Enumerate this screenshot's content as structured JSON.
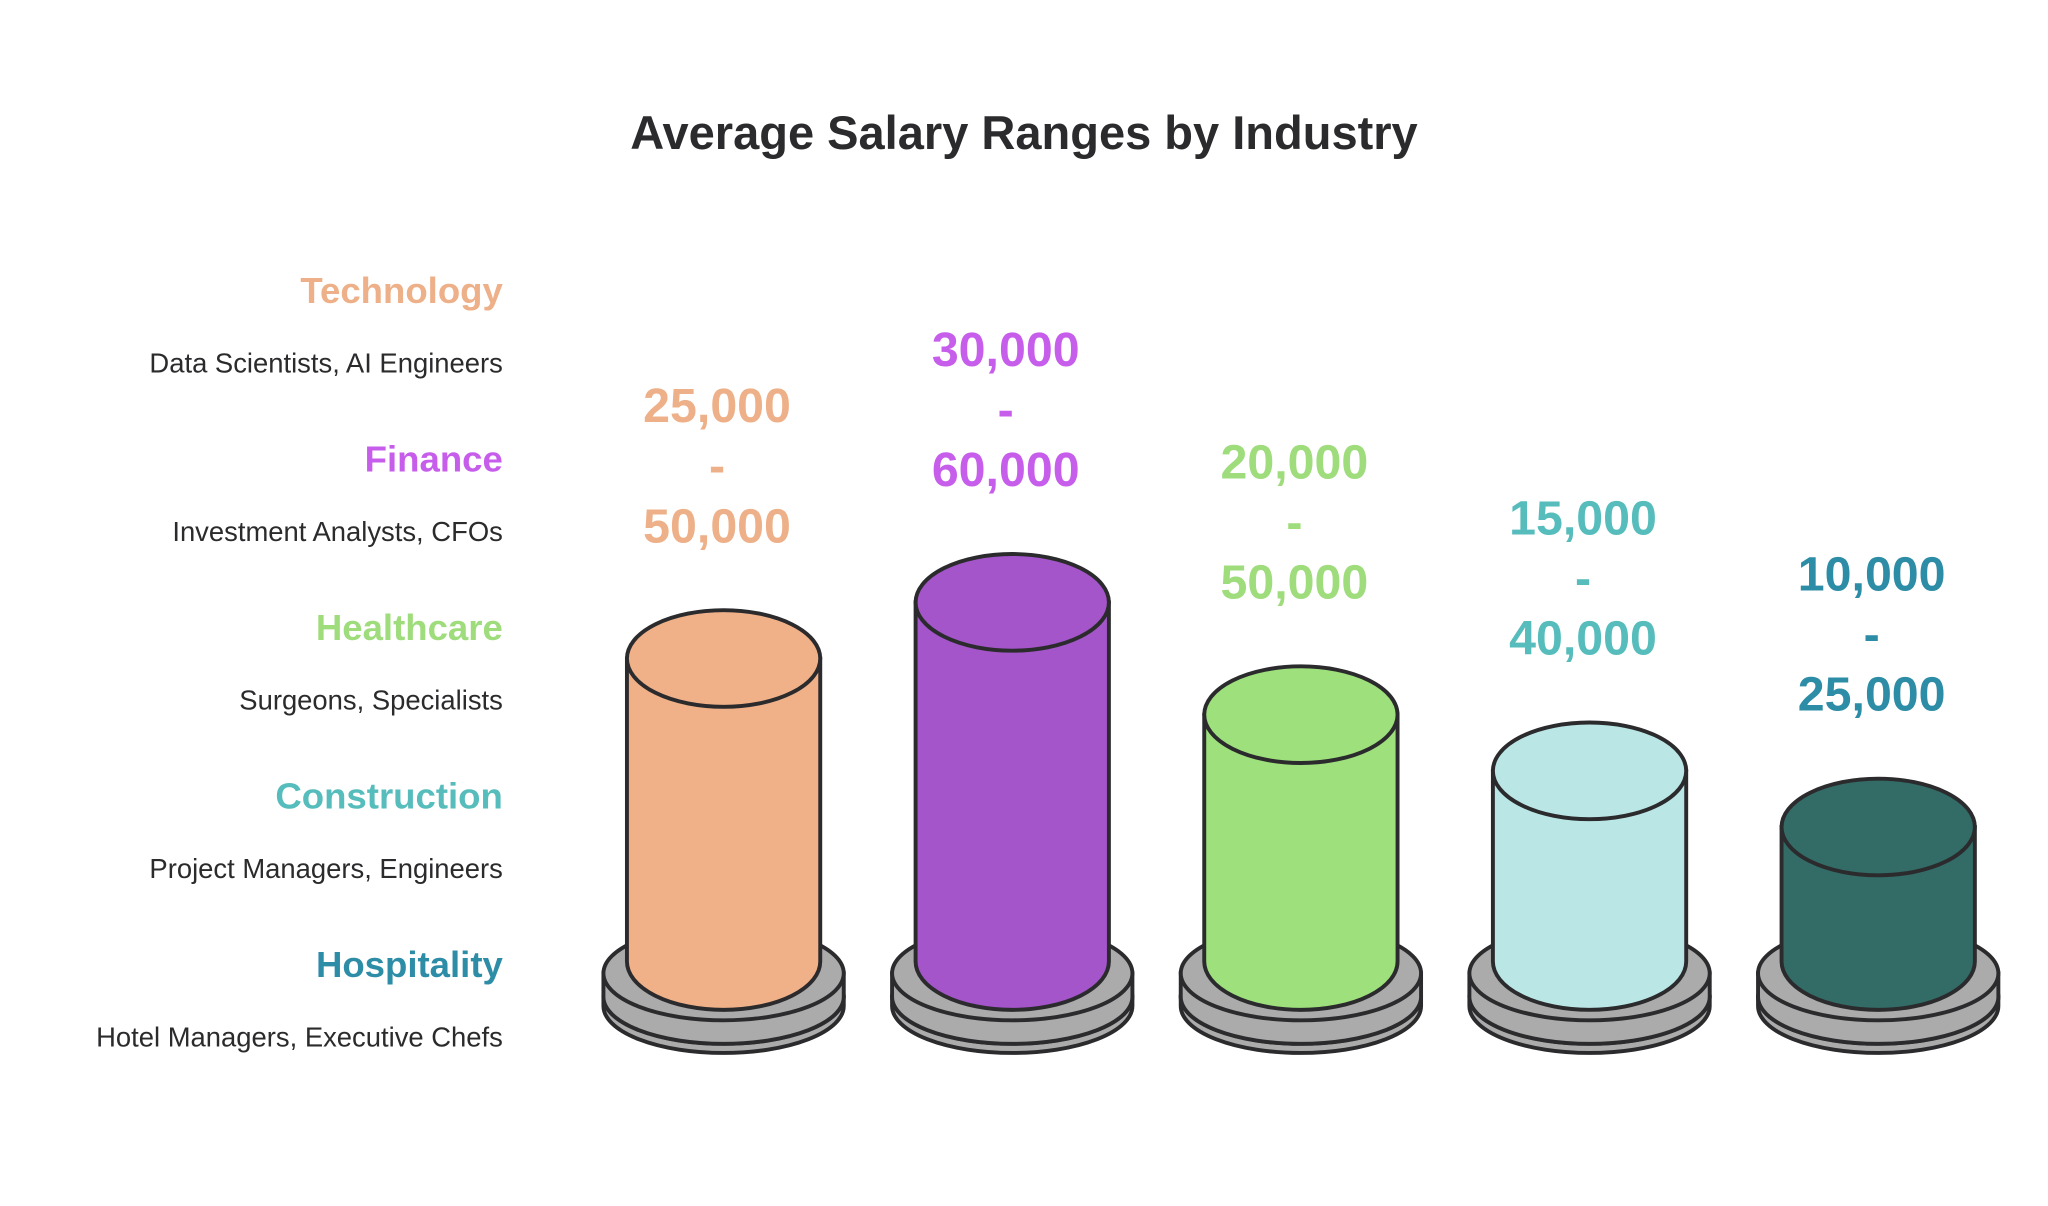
{
  "chart_data": {
    "type": "bar",
    "style": "3d-cylinder",
    "title": "Average Salary Ranges by Industry",
    "categories": [
      "Technology",
      "Finance",
      "Healthcare",
      "Construction",
      "Hospitality"
    ],
    "descriptions": [
      "Data Scientists, AI Engineers",
      "Investment Analysts, CFOs",
      "Surgeons, Specialists",
      "Project Managers, Engineers",
      "Hotel Managers, Executive Chefs"
    ],
    "ranges": [
      {
        "low": "25,000",
        "sep": "-",
        "high": "50,000"
      },
      {
        "low": "30,000",
        "sep": "-",
        "high": "60,000"
      },
      {
        "low": "20,000",
        "sep": "-",
        "high": "50,000"
      },
      {
        "low": "15,000",
        "sep": "-",
        "high": "40,000"
      },
      {
        "low": "10,000",
        "sep": "-",
        "high": "25,000"
      }
    ],
    "label_colors": [
      "#EDB088",
      "#C75EEB",
      "#9EDC7C",
      "#56BCBC",
      "#2D8CA6"
    ],
    "bar_colors": [
      "#F0B188",
      "#A355C9",
      "#9EE07C",
      "#BAE6E5",
      "#336B66"
    ],
    "base_color": "#ABABAB",
    "outline_color": "#2B2B2E",
    "legend": "left",
    "grid": false
  }
}
